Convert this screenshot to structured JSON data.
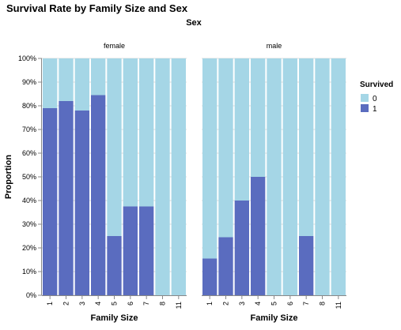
{
  "chart_data": {
    "type": "bar",
    "stacked": "normalize",
    "title": "Survival Rate by Family Size and Sex",
    "facet_title": "Sex",
    "ylabel": "Proportion",
    "xlabel": "Family Size",
    "ylim": [
      0,
      1
    ],
    "y_ticks": [
      "0%",
      "10%",
      "20%",
      "30%",
      "40%",
      "50%",
      "60%",
      "70%",
      "80%",
      "90%",
      "100%"
    ],
    "categories": [
      "1",
      "2",
      "3",
      "4",
      "5",
      "6",
      "7",
      "8",
      "11"
    ],
    "grid": true,
    "legend": {
      "title": "Survived",
      "placement": "right",
      "entries": [
        {
          "label": "0",
          "color": "#a5d6e6"
        },
        {
          "label": "1",
          "color": "#5a6cbf"
        }
      ]
    },
    "panels": [
      {
        "name": "female",
        "survived_proportion": [
          0.79,
          0.82,
          0.78,
          0.845,
          0.25,
          0.375,
          0.375,
          0,
          0
        ]
      },
      {
        "name": "male",
        "survived_proportion": [
          0.155,
          0.245,
          0.4,
          0.5,
          0,
          0,
          0.25,
          0,
          0
        ]
      }
    ]
  }
}
